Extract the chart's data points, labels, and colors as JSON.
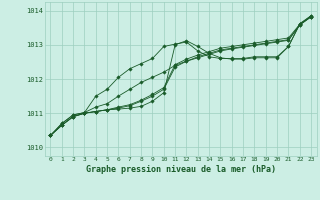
{
  "title": "Graphe pression niveau de la mer (hPa)",
  "bg_color": "#cceee4",
  "grid_color": "#9dcfbf",
  "line_color": "#1a5c2a",
  "xlim": [
    -0.5,
    23.5
  ],
  "ylim": [
    1009.75,
    1014.25
  ],
  "xticks": [
    0,
    1,
    2,
    3,
    4,
    5,
    6,
    7,
    8,
    9,
    10,
    11,
    12,
    13,
    14,
    15,
    16,
    17,
    18,
    19,
    20,
    21,
    22,
    23
  ],
  "yticks": [
    1010,
    1011,
    1012,
    1013,
    1014
  ],
  "series": [
    [
      1010.35,
      1010.65,
      1010.9,
      1011.0,
      1011.05,
      1011.1,
      1011.12,
      1011.15,
      1011.2,
      1011.35,
      1011.6,
      1013.0,
      1013.12,
      1012.95,
      1012.75,
      1012.62,
      1012.58,
      1012.58,
      1012.62,
      1012.62,
      1012.62,
      1012.95,
      1013.6,
      1013.82
    ],
    [
      1010.35,
      1010.65,
      1010.9,
      1011.0,
      1011.05,
      1011.1,
      1011.15,
      1011.22,
      1011.35,
      1011.5,
      1011.7,
      1012.35,
      1012.52,
      1012.65,
      1012.75,
      1012.85,
      1012.9,
      1012.95,
      1013.0,
      1013.05,
      1013.1,
      1013.15,
      1013.58,
      1013.82
    ],
    [
      1010.35,
      1010.65,
      1010.9,
      1011.0,
      1011.05,
      1011.1,
      1011.18,
      1011.25,
      1011.38,
      1011.55,
      1011.75,
      1012.42,
      1012.58,
      1012.7,
      1012.8,
      1012.9,
      1012.95,
      1013.0,
      1013.05,
      1013.1,
      1013.15,
      1013.2,
      1013.6,
      1013.85
    ],
    [
      1010.35,
      1010.7,
      1010.95,
      1011.02,
      1011.18,
      1011.28,
      1011.5,
      1011.7,
      1011.9,
      1012.05,
      1012.2,
      1012.4,
      1012.52,
      1012.62,
      1012.72,
      1012.82,
      1012.88,
      1012.93,
      1012.98,
      1013.03,
      1013.08,
      1013.13,
      1013.58,
      1013.82
    ],
    [
      1010.35,
      1010.7,
      1010.95,
      1011.02,
      1011.5,
      1011.7,
      1012.05,
      1012.3,
      1012.45,
      1012.6,
      1012.95,
      1013.02,
      1013.08,
      1012.82,
      1012.65,
      1012.6,
      1012.6,
      1012.6,
      1012.65,
      1012.65,
      1012.65,
      1012.95,
      1013.62,
      1013.85
    ]
  ]
}
